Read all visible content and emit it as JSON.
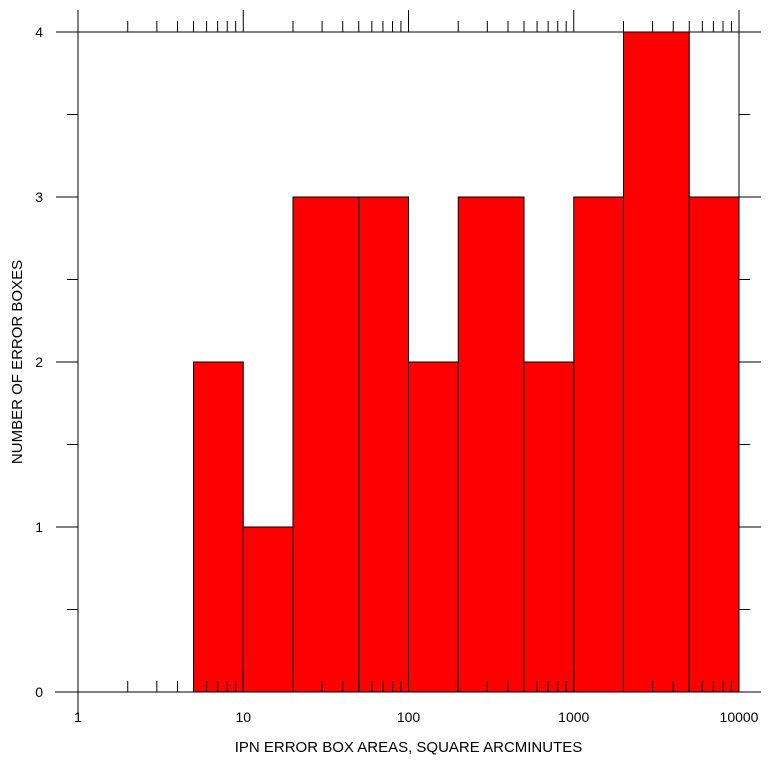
{
  "chart_data": {
    "type": "bar",
    "xlabel": "IPN ERROR BOX AREAS, SQUARE ARCMINUTES",
    "ylabel": "NUMBER OF ERROR BOXES",
    "x_scale": "log",
    "xlim": [
      1,
      10000
    ],
    "ylim": [
      0,
      4
    ],
    "grid": false,
    "bars": [
      {
        "x_start": 5,
        "x_end": 10,
        "value": 2
      },
      {
        "x_start": 10,
        "x_end": 20,
        "value": 1
      },
      {
        "x_start": 20,
        "x_end": 50,
        "value": 3
      },
      {
        "x_start": 50,
        "x_end": 100,
        "value": 3
      },
      {
        "x_start": 100,
        "x_end": 200,
        "value": 2
      },
      {
        "x_start": 200,
        "x_end": 500,
        "value": 3
      },
      {
        "x_start": 500,
        "x_end": 1000,
        "value": 2
      },
      {
        "x_start": 1000,
        "x_end": 2000,
        "value": 3
      },
      {
        "x_start": 2000,
        "x_end": 5000,
        "value": 4
      },
      {
        "x_start": 5000,
        "x_end": 10000,
        "value": 3
      }
    ],
    "x_ticks": [
      {
        "value": 1,
        "label": "1"
      },
      {
        "value": 10,
        "label": "10"
      },
      {
        "value": 100,
        "label": "100"
      },
      {
        "value": 1000,
        "label": "1000"
      },
      {
        "value": 10000,
        "label": "10000"
      }
    ],
    "y_ticks": [
      {
        "value": 0,
        "label": "0"
      },
      {
        "value": 1,
        "label": "1"
      },
      {
        "value": 2,
        "label": "2"
      },
      {
        "value": 3,
        "label": "3"
      },
      {
        "value": 4,
        "label": "4"
      }
    ],
    "bar_color": "#ff0000"
  }
}
